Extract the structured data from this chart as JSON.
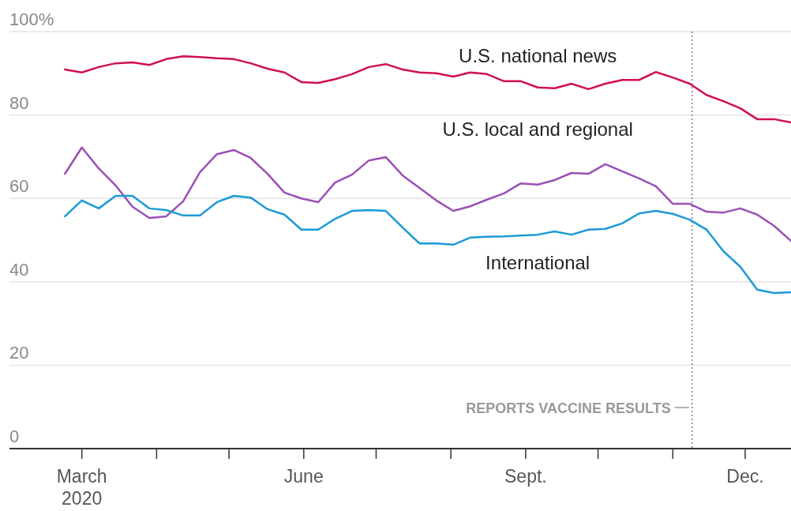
{
  "chart_data": {
    "type": "line",
    "x": [
      "2020-02-23",
      "2020-03-01",
      "2020-03-08",
      "2020-03-15",
      "2020-03-22",
      "2020-03-29",
      "2020-04-05",
      "2020-04-12",
      "2020-04-19",
      "2020-04-26",
      "2020-05-03",
      "2020-05-10",
      "2020-05-17",
      "2020-05-24",
      "2020-05-31",
      "2020-06-07",
      "2020-06-14",
      "2020-06-21",
      "2020-06-28",
      "2020-07-05",
      "2020-07-12",
      "2020-07-19",
      "2020-07-26",
      "2020-08-02",
      "2020-08-09",
      "2020-08-16",
      "2020-08-23",
      "2020-08-30",
      "2020-09-06",
      "2020-09-13",
      "2020-09-20",
      "2020-09-27",
      "2020-10-04",
      "2020-10-11",
      "2020-10-18",
      "2020-10-25",
      "2020-11-01",
      "2020-11-08",
      "2020-11-15",
      "2020-11-22",
      "2020-11-29",
      "2020-12-06",
      "2020-12-13",
      "2020-12-20"
    ],
    "series": [
      {
        "name": "U.S. national news",
        "color": "#d0104c",
        "values": [
          90.9,
          90.2,
          91.5,
          92.4,
          92.6,
          92.0,
          93.4,
          94.1,
          93.9,
          93.6,
          93.4,
          92.4,
          91.1,
          90.2,
          87.9,
          87.7,
          88.6,
          89.8,
          91.5,
          92.2,
          90.9,
          90.2,
          90.0,
          89.2,
          90.2,
          89.8,
          88.1,
          88.1,
          86.6,
          86.4,
          87.5,
          86.2,
          87.5,
          88.4,
          88.4,
          90.3,
          89.0,
          87.5,
          84.8,
          83.3,
          81.6,
          79.0,
          79.0,
          78.2
        ]
      },
      {
        "name": "U.S. local and regional",
        "color": "#9b4fb5",
        "values": [
          65.9,
          72.2,
          67.2,
          63.1,
          58.0,
          55.3,
          55.7,
          59.3,
          66.3,
          70.6,
          71.6,
          69.7,
          65.9,
          61.4,
          60.0,
          59.1,
          63.8,
          65.7,
          69.1,
          69.9,
          65.5,
          62.5,
          59.5,
          57.0,
          58.1,
          59.7,
          61.2,
          63.6,
          63.3,
          64.4,
          66.1,
          65.9,
          68.2,
          66.5,
          64.8,
          62.9,
          58.7,
          58.7,
          56.8,
          56.6,
          57.6,
          56.1,
          53.4,
          49.8
        ]
      },
      {
        "name": "International",
        "color": "#1b9ad6",
        "values": [
          55.7,
          59.5,
          57.6,
          60.6,
          60.6,
          57.6,
          57.2,
          55.9,
          55.9,
          59.1,
          60.6,
          60.2,
          57.4,
          56.1,
          52.5,
          52.5,
          55.1,
          57.0,
          57.2,
          57.0,
          53.0,
          49.2,
          49.2,
          48.9,
          50.6,
          50.8,
          50.9,
          51.1,
          51.3,
          52.1,
          51.3,
          52.5,
          52.7,
          54.0,
          56.4,
          57.0,
          56.3,
          54.9,
          52.5,
          47.3,
          43.6,
          38.1,
          37.3,
          37.5
        ]
      }
    ],
    "xlim": [
      "2020-01-31",
      "2020-12-20"
    ],
    "xticks": [
      {
        "value": "2020-03-01",
        "label": "March\n2020"
      },
      {
        "value": "2020-04-01",
        "label": null
      },
      {
        "value": "2020-05-01",
        "label": null
      },
      {
        "value": "2020-06-01",
        "label": "June"
      },
      {
        "value": "2020-07-01",
        "label": null
      },
      {
        "value": "2020-08-01",
        "label": null
      },
      {
        "value": "2020-09-01",
        "label": "Sept."
      },
      {
        "value": "2020-10-01",
        "label": null
      },
      {
        "value": "2020-11-01",
        "label": null
      },
      {
        "value": "2020-12-01",
        "label": "Dec."
      }
    ],
    "ylim": [
      0,
      100
    ],
    "yticks": [
      0,
      20,
      40,
      60,
      80,
      {
        "value": 100,
        "label": "100%"
      }
    ],
    "grid": "y",
    "ref_lines": [
      {
        "axis": "x",
        "value": "2020-11-09",
        "label": "REPORTS VACCINE RESULTS",
        "line_style": "dotted",
        "color": "#999999"
      }
    ],
    "line_style": "solid"
  }
}
